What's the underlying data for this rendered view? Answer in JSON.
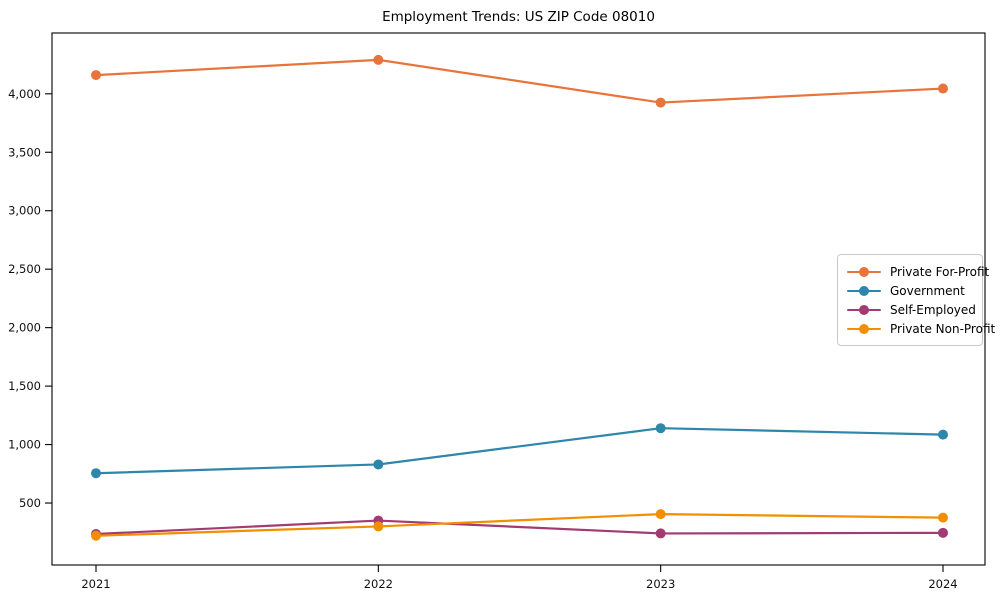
{
  "chart_data": {
    "type": "line",
    "title": "Employment Trends: US ZIP Code 08010",
    "x": [
      2021,
      2022,
      2023,
      2024
    ],
    "xtick_labels": [
      "2021",
      "2022",
      "2023",
      "2024"
    ],
    "series": [
      {
        "name": "Private For-Profit",
        "color": "#E8743B",
        "values": [
          4160,
          4290,
          3925,
          4045
        ]
      },
      {
        "name": "Government",
        "color": "#2E86AB",
        "values": [
          755,
          830,
          1140,
          1085
        ]
      },
      {
        "name": "Self-Employed",
        "color": "#A23B72",
        "values": [
          235,
          350,
          240,
          245
        ]
      },
      {
        "name": "Private Non-Profit",
        "color": "#F18F01",
        "values": [
          220,
          300,
          405,
          375
        ]
      }
    ],
    "xlabel": "",
    "ylabel": "",
    "ylim": [
      -30,
      4520
    ],
    "yticks": [
      500,
      1000,
      1500,
      2000,
      2500,
      3000,
      3500,
      4000
    ],
    "ytick_labels": [
      "500",
      "1,000",
      "1,500",
      "2,000",
      "2,500",
      "3,000",
      "3,500",
      "4,000"
    ],
    "grid": false,
    "legend_position": "center-right",
    "marker": "circle",
    "axis_color": "#000000",
    "tick_label_color": "#111111"
  }
}
